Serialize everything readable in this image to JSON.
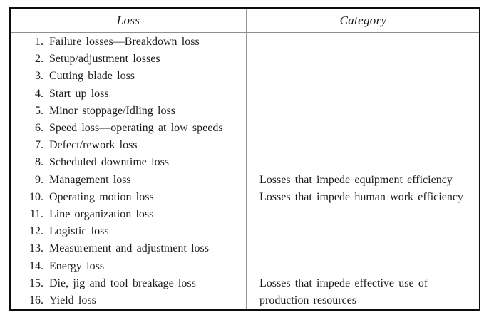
{
  "colors": {
    "outer_border": "#0d0d0d",
    "inner_lines": "#979797",
    "text": "#1b1b1b",
    "background": "#ffffff"
  },
  "table": {
    "headers": {
      "loss": "Loss",
      "category": "Category"
    },
    "rows": [
      {
        "num": "1.",
        "loss": "Failure losses—Breakdown loss",
        "category": ""
      },
      {
        "num": "2.",
        "loss": "Setup/adjustment losses",
        "category": ""
      },
      {
        "num": "3.",
        "loss": "Cutting blade loss",
        "category": ""
      },
      {
        "num": "4.",
        "loss": "Start up loss",
        "category": ""
      },
      {
        "num": "5.",
        "loss": "Minor stoppage/Idling loss",
        "category": ""
      },
      {
        "num": "6.",
        "loss": "Speed loss—operating at low speeds",
        "category": ""
      },
      {
        "num": "7.",
        "loss": "Defect/rework loss",
        "category": ""
      },
      {
        "num": "8.",
        "loss": "Scheduled downtime loss",
        "category": ""
      },
      {
        "num": "9.",
        "loss": "Management loss",
        "category": "Losses that impede equipment efficiency"
      },
      {
        "num": "10.",
        "loss": "Operating motion loss",
        "category": "Losses that impede human work efficiency"
      },
      {
        "num": "11.",
        "loss": "Line organization loss",
        "category": ""
      },
      {
        "num": "12.",
        "loss": "Logistic loss",
        "category": ""
      },
      {
        "num": "13.",
        "loss": "Measurement and adjustment loss",
        "category": ""
      },
      {
        "num": "14.",
        "loss": "Energy loss",
        "category": ""
      },
      {
        "num": "15.",
        "loss": "Die, jig and tool breakage loss",
        "category": "Losses that impede effective use of"
      },
      {
        "num": "16.",
        "loss": "Yield loss",
        "category": "production resources"
      }
    ]
  }
}
